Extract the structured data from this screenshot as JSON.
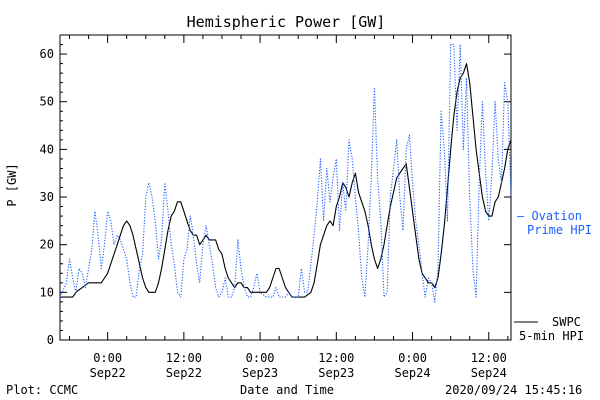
{
  "chart_data": {
    "type": "line",
    "title": "Hemispheric Power [GW]",
    "xlabel": "Date and Time",
    "ylabel": "P [GW]",
    "ylim": [
      0,
      64
    ],
    "yticks": [
      0,
      10,
      20,
      30,
      40,
      50,
      60
    ],
    "x_range_hours": [
      -7.5,
      63.5
    ],
    "x_ticks": [
      {
        "hour": 0,
        "time": "0:00",
        "date": "Sep22"
      },
      {
        "hour": 12,
        "time": "12:00",
        "date": "Sep22"
      },
      {
        "hour": 24,
        "time": "0:00",
        "date": "Sep23"
      },
      {
        "hour": 36,
        "time": "12:00",
        "date": "Sep23"
      },
      {
        "hour": 48,
        "time": "0:00",
        "date": "Sep24"
      },
      {
        "hour": 60,
        "time": "12:00",
        "date": "Sep24"
      }
    ],
    "legend_placement": "right",
    "series": [
      {
        "name": "SWPC 5-min HPI",
        "label_lines": [
          "SWPC",
          "5-min HPI"
        ],
        "color": "#000000",
        "style": "solid",
        "points": [
          [
            -7.5,
            9
          ],
          [
            -5.5,
            9
          ],
          [
            -5,
            10
          ],
          [
            -4,
            11
          ],
          [
            -3,
            12
          ],
          [
            -1,
            12
          ],
          [
            -0.5,
            13
          ],
          [
            0,
            14
          ],
          [
            0.5,
            16
          ],
          [
            1,
            18
          ],
          [
            1.5,
            20
          ],
          [
            2,
            22
          ],
          [
            2.5,
            24
          ],
          [
            3,
            25
          ],
          [
            3.5,
            24
          ],
          [
            4,
            22
          ],
          [
            4.5,
            19
          ],
          [
            5,
            16
          ],
          [
            5.5,
            13
          ],
          [
            6,
            11
          ],
          [
            6.5,
            10
          ],
          [
            7.5,
            10
          ],
          [
            8,
            12
          ],
          [
            8.5,
            15
          ],
          [
            9,
            19
          ],
          [
            9.5,
            23
          ],
          [
            10,
            26
          ],
          [
            10.5,
            27
          ],
          [
            11,
            29
          ],
          [
            11.5,
            29
          ],
          [
            12,
            27
          ],
          [
            12.5,
            25
          ],
          [
            13,
            23
          ],
          [
            13.5,
            22
          ],
          [
            14,
            22
          ],
          [
            14.5,
            20
          ],
          [
            15,
            21
          ],
          [
            15.5,
            22
          ],
          [
            16,
            21
          ],
          [
            16.5,
            21
          ],
          [
            17,
            21
          ],
          [
            17.5,
            19
          ],
          [
            18,
            18
          ],
          [
            18.5,
            15
          ],
          [
            19,
            13
          ],
          [
            19.5,
            12
          ],
          [
            20,
            11
          ],
          [
            20.5,
            12
          ],
          [
            21,
            12
          ],
          [
            21.5,
            11
          ],
          [
            22,
            11
          ],
          [
            22.5,
            10
          ],
          [
            23,
            10
          ],
          [
            24,
            10
          ],
          [
            25,
            10
          ],
          [
            25.5,
            11
          ],
          [
            26,
            13
          ],
          [
            26.5,
            15
          ],
          [
            27,
            15
          ],
          [
            27.5,
            13
          ],
          [
            28,
            11
          ],
          [
            28.5,
            10
          ],
          [
            29,
            9
          ],
          [
            31,
            9
          ],
          [
            32,
            10
          ],
          [
            32.5,
            12
          ],
          [
            33,
            16
          ],
          [
            33.5,
            20
          ],
          [
            34,
            22
          ],
          [
            34.5,
            24
          ],
          [
            35,
            25
          ],
          [
            35.5,
            24
          ],
          [
            36,
            28
          ],
          [
            36.5,
            30
          ],
          [
            37,
            33
          ],
          [
            37.5,
            32
          ],
          [
            38,
            30
          ],
          [
            38.5,
            33
          ],
          [
            39,
            35
          ],
          [
            39.5,
            31
          ],
          [
            40,
            29
          ],
          [
            40.5,
            27
          ],
          [
            41,
            24
          ],
          [
            41.5,
            20
          ],
          [
            42,
            17
          ],
          [
            42.5,
            15
          ],
          [
            43,
            17
          ],
          [
            43.5,
            20
          ],
          [
            44,
            24
          ],
          [
            44.5,
            28
          ],
          [
            45,
            31
          ],
          [
            45.5,
            34
          ],
          [
            46,
            35
          ],
          [
            46.5,
            36
          ],
          [
            47,
            37
          ],
          [
            47.5,
            32
          ],
          [
            48,
            27
          ],
          [
            48.5,
            22
          ],
          [
            49,
            17
          ],
          [
            49.5,
            14
          ],
          [
            50,
            13
          ],
          [
            50.5,
            12
          ],
          [
            51,
            12
          ],
          [
            51.5,
            11
          ],
          [
            52,
            13
          ],
          [
            52.5,
            18
          ],
          [
            53,
            24
          ],
          [
            53.5,
            32
          ],
          [
            54,
            40
          ],
          [
            54.5,
            47
          ],
          [
            55,
            52
          ],
          [
            55.5,
            55
          ],
          [
            56,
            56
          ],
          [
            56.5,
            58
          ],
          [
            57,
            54
          ],
          [
            57.5,
            47
          ],
          [
            58,
            40
          ],
          [
            58.5,
            35
          ],
          [
            59,
            30
          ],
          [
            59.5,
            27
          ],
          [
            60,
            26
          ],
          [
            60.5,
            26
          ],
          [
            61,
            29
          ],
          [
            61.5,
            30
          ],
          [
            62,
            33
          ],
          [
            62.5,
            36
          ],
          [
            63,
            40
          ],
          [
            63.5,
            42
          ]
        ]
      },
      {
        "name": "Ovation Prime HPI",
        "label_lines": [
          "— Ovation",
          "Prime HPI"
        ],
        "color": "#1f5fff",
        "style": "dotted",
        "points": [
          [
            -7.5,
            9
          ],
          [
            -6.5,
            12
          ],
          [
            -6,
            17
          ],
          [
            -5.5,
            13
          ],
          [
            -5,
            10
          ],
          [
            -4.5,
            15
          ],
          [
            -4,
            14
          ],
          [
            -3.5,
            11
          ],
          [
            -3,
            15
          ],
          [
            -2.5,
            19
          ],
          [
            -2,
            27
          ],
          [
            -1.5,
            22
          ],
          [
            -1,
            15
          ],
          [
            -0.5,
            20
          ],
          [
            0,
            27
          ],
          [
            0.5,
            25
          ],
          [
            1,
            20
          ],
          [
            1.5,
            22
          ],
          [
            2,
            21
          ],
          [
            2.5,
            19
          ],
          [
            3,
            17
          ],
          [
            3.5,
            12
          ],
          [
            4,
            9
          ],
          [
            4.5,
            9
          ],
          [
            5,
            15
          ],
          [
            5.5,
            18
          ],
          [
            6,
            30
          ],
          [
            6.5,
            33
          ],
          [
            7,
            30
          ],
          [
            7.5,
            25
          ],
          [
            8,
            17
          ],
          [
            8.5,
            21
          ],
          [
            9,
            33
          ],
          [
            9.5,
            27
          ],
          [
            10,
            20
          ],
          [
            10.5,
            16
          ],
          [
            11,
            10
          ],
          [
            11.5,
            9
          ],
          [
            12,
            17
          ],
          [
            12.5,
            19
          ],
          [
            13,
            26
          ],
          [
            13.5,
            22
          ],
          [
            14,
            16
          ],
          [
            14.5,
            12
          ],
          [
            15,
            20
          ],
          [
            15.5,
            24
          ],
          [
            16,
            20
          ],
          [
            16.5,
            16
          ],
          [
            17,
            11
          ],
          [
            17.5,
            9
          ],
          [
            18,
            10
          ],
          [
            18.5,
            13
          ],
          [
            19,
            9
          ],
          [
            19.5,
            9
          ],
          [
            20,
            11
          ],
          [
            20.5,
            21
          ],
          [
            21,
            15
          ],
          [
            21.5,
            11
          ],
          [
            22,
            9
          ],
          [
            22.5,
            9
          ],
          [
            23,
            11
          ],
          [
            23.5,
            14
          ],
          [
            24,
            10
          ],
          [
            25,
            9
          ],
          [
            26,
            9
          ],
          [
            26.5,
            11
          ],
          [
            27,
            9
          ],
          [
            28,
            9
          ],
          [
            28.5,
            10
          ],
          [
            29,
            9
          ],
          [
            30,
            9
          ],
          [
            30.5,
            15
          ],
          [
            31,
            10
          ],
          [
            31.5,
            10
          ],
          [
            32,
            16
          ],
          [
            32.5,
            22
          ],
          [
            33,
            29
          ],
          [
            33.5,
            38
          ],
          [
            34,
            25
          ],
          [
            34.5,
            36
          ],
          [
            35,
            29
          ],
          [
            35.5,
            34
          ],
          [
            36,
            38
          ],
          [
            36.5,
            23
          ],
          [
            37,
            33
          ],
          [
            37.5,
            27
          ],
          [
            38,
            42
          ],
          [
            38.5,
            38
          ],
          [
            39,
            30
          ],
          [
            39.5,
            23
          ],
          [
            40,
            13
          ],
          [
            40.5,
            9
          ],
          [
            41,
            20
          ],
          [
            41.5,
            34
          ],
          [
            42,
            53
          ],
          [
            42.5,
            34
          ],
          [
            43,
            25
          ],
          [
            43.5,
            9
          ],
          [
            44,
            10
          ],
          [
            44.5,
            30
          ],
          [
            45,
            36
          ],
          [
            45.5,
            42
          ],
          [
            46,
            30
          ],
          [
            46.5,
            23
          ],
          [
            47,
            40
          ],
          [
            47.5,
            43
          ],
          [
            48,
            33
          ],
          [
            48.5,
            25
          ],
          [
            49,
            20
          ],
          [
            49.5,
            14
          ],
          [
            50,
            9
          ],
          [
            50.5,
            13
          ],
          [
            51,
            12
          ],
          [
            51.5,
            8
          ],
          [
            52,
            15
          ],
          [
            52.5,
            48
          ],
          [
            53,
            40
          ],
          [
            53.5,
            25
          ],
          [
            54,
            62
          ],
          [
            54.5,
            62
          ],
          [
            55,
            44
          ],
          [
            55.5,
            62
          ],
          [
            56,
            40
          ],
          [
            56.5,
            55
          ],
          [
            57,
            30
          ],
          [
            57.5,
            15
          ],
          [
            58,
            9
          ],
          [
            58.5,
            33
          ],
          [
            59,
            50
          ],
          [
            59.5,
            35
          ],
          [
            60,
            25
          ],
          [
            60.5,
            35
          ],
          [
            61,
            50
          ],
          [
            61.5,
            38
          ],
          [
            62,
            33
          ],
          [
            62.5,
            54
          ],
          [
            63,
            50
          ],
          [
            63.5,
            30
          ]
        ]
      }
    ]
  },
  "footer": {
    "left": "Plot: CCMC",
    "center": "Date and Time",
    "right": "2020/09/24 15:45:16"
  }
}
